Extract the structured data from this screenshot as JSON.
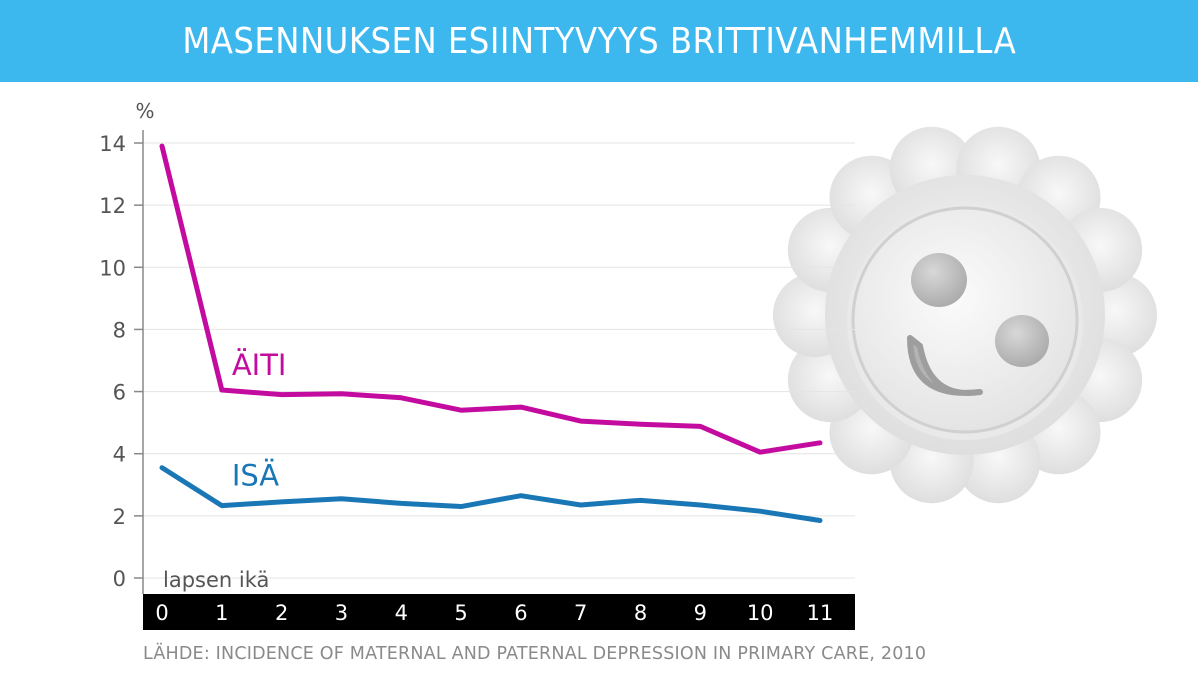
{
  "header": {
    "title": "MASENNUKSEN ESIINTYVYYS BRITTIVANHEMMILLA"
  },
  "source": "LÄHDE: INCIDENCE OF MATERNAL AND PATERNAL DEPRESSION IN PRIMARY CARE, 2010",
  "colors": {
    "header_bg": "#3db8ee",
    "aiti": "#c40ba0",
    "isa": "#1a77b6",
    "axis_band": "#000000"
  },
  "chart_data": {
    "type": "line",
    "ylabel": "%",
    "xlabel": "lapsen ikä",
    "ylim": [
      0,
      14
    ],
    "yticks": [
      0,
      2,
      4,
      6,
      8,
      10,
      12,
      14
    ],
    "x": [
      0,
      1,
      2,
      3,
      4,
      5,
      6,
      7,
      8,
      9,
      10,
      11
    ],
    "xticks": [
      "0",
      "1",
      "2",
      "3",
      "4",
      "5",
      "6",
      "7",
      "8",
      "9",
      "10",
      "11"
    ],
    "grid": true,
    "series": [
      {
        "name": "ÄITI",
        "values": [
          13.9,
          6.05,
          5.9,
          5.93,
          5.8,
          5.4,
          5.5,
          5.05,
          4.95,
          4.88,
          4.05,
          4.35
        ]
      },
      {
        "name": "ISÄ",
        "values": [
          3.55,
          2.33,
          2.45,
          2.55,
          2.4,
          2.3,
          2.65,
          2.35,
          2.5,
          2.35,
          2.15,
          1.85
        ]
      }
    ]
  }
}
